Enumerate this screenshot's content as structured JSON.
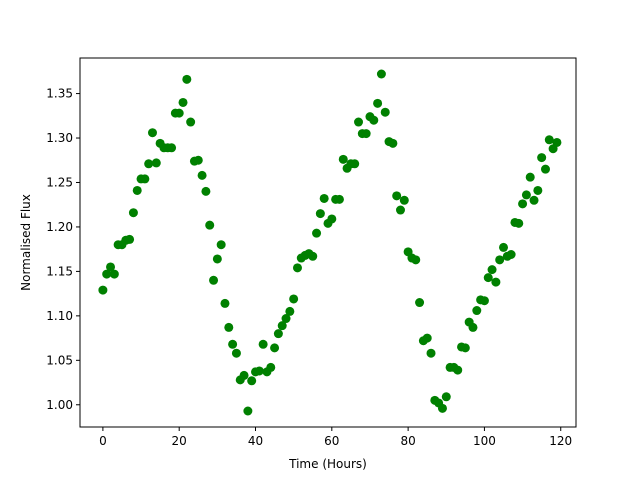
{
  "chart_data": {
    "type": "scatter",
    "title": "",
    "xlabel": "Time (Hours)",
    "ylabel": "Normalised Flux",
    "xlim": [
      -6,
      124
    ],
    "ylim": [
      0.975,
      1.39
    ],
    "xticks": [
      0,
      20,
      40,
      60,
      80,
      100,
      120
    ],
    "yticks": [
      1.0,
      1.05,
      1.1,
      1.15,
      1.2,
      1.25,
      1.3,
      1.35
    ],
    "xtick_labels": [
      "0",
      "20",
      "40",
      "60",
      "80",
      "100",
      "120"
    ],
    "ytick_labels": [
      "1.00",
      "1.05",
      "1.10",
      "1.15",
      "1.20",
      "1.25",
      "1.30",
      "1.35"
    ],
    "grid": false,
    "marker_color": "#008000",
    "series": [
      {
        "x": [
          0,
          1,
          2,
          3,
          4,
          5,
          6,
          7,
          8,
          9,
          10,
          11,
          12,
          13,
          14,
          15,
          16,
          17,
          18,
          19,
          20,
          21,
          22,
          23,
          24,
          25,
          26,
          27,
          28,
          29,
          30,
          31,
          32,
          33,
          34,
          35,
          36,
          37,
          38,
          39,
          40,
          41,
          42,
          43,
          44,
          45,
          46,
          47,
          48,
          49,
          50,
          51,
          52,
          53,
          54,
          55,
          56,
          57,
          58,
          59,
          60,
          61,
          62,
          63,
          64,
          65,
          66,
          67,
          68,
          69,
          70,
          71,
          72,
          73,
          74,
          75,
          76,
          77,
          78,
          79,
          80,
          81,
          82,
          83,
          84,
          85,
          86,
          87,
          88,
          89,
          90,
          91,
          92,
          93,
          94,
          95,
          96,
          97,
          98,
          99,
          100,
          101,
          102,
          103,
          104,
          105,
          106,
          107,
          108,
          109,
          110,
          111,
          112,
          113,
          114,
          115,
          116,
          117,
          118,
          119
        ],
        "y": [
          1.129,
          1.147,
          1.155,
          1.147,
          1.18,
          1.18,
          1.185,
          1.186,
          1.216,
          1.241,
          1.254,
          1.254,
          1.271,
          1.306,
          1.272,
          1.294,
          1.289,
          1.289,
          1.289,
          1.328,
          1.328,
          1.34,
          1.366,
          1.318,
          1.274,
          1.275,
          1.258,
          1.24,
          1.202,
          1.14,
          1.164,
          1.18,
          1.114,
          1.087,
          1.068,
          1.058,
          1.028,
          1.033,
          0.993,
          1.027,
          1.037,
          1.038,
          1.068,
          1.037,
          1.042,
          1.064,
          1.08,
          1.089,
          1.097,
          1.105,
          1.119,
          1.154,
          1.165,
          1.168,
          1.17,
          1.167,
          1.193,
          1.215,
          1.232,
          1.204,
          1.209,
          1.231,
          1.231,
          1.276,
          1.266,
          1.271,
          1.271,
          1.318,
          1.305,
          1.305,
          1.324,
          1.32,
          1.339,
          1.372,
          1.329,
          1.296,
          1.294,
          1.235,
          1.219,
          1.23,
          1.172,
          1.165,
          1.163,
          1.115,
          1.072,
          1.075,
          1.058,
          1.005,
          1.002,
          0.996,
          1.009,
          1.042,
          1.042,
          1.039,
          1.065,
          1.064,
          1.093,
          1.087,
          1.106,
          1.118,
          1.117,
          1.143,
          1.152,
          1.138,
          1.163,
          1.177,
          1.167,
          1.169,
          1.205,
          1.204,
          1.226,
          1.236,
          1.256,
          1.23,
          1.241,
          1.278,
          1.265,
          1.298,
          1.288,
          1.295
        ]
      }
    ]
  }
}
